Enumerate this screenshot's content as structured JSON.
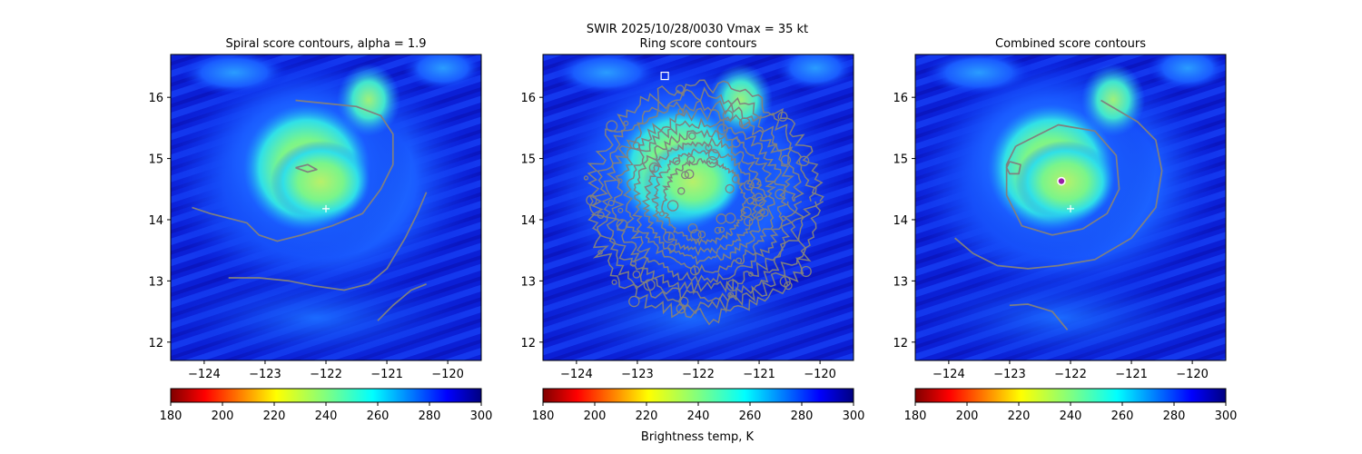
{
  "figure": {
    "suptitle_line1": "SWIR  2025/10/28/0030    Vmax = 35 kt",
    "colorbar_label": "Brightness temp, K"
  },
  "chart_data": [
    {
      "type": "heatmap",
      "title": "Spiral score contours, alpha =  1.9",
      "xlim": [
        -124.55,
        -119.45
      ],
      "ylim": [
        11.7,
        16.7
      ],
      "xticks": [
        -124,
        -123,
        -122,
        -121,
        -120
      ],
      "yticks": [
        12,
        13,
        14,
        15,
        16
      ],
      "contours": [
        {
          "name": "upper-ring",
          "points": [
            [
              -122.5,
              15.95
            ],
            [
              -121.5,
              15.85
            ],
            [
              -121.1,
              15.7
            ],
            [
              -120.9,
              15.4
            ],
            [
              -120.9,
              14.9
            ],
            [
              -121.1,
              14.5
            ],
            [
              -121.4,
              14.1
            ],
            [
              -121.9,
              13.9
            ],
            [
              -122.4,
              13.75
            ],
            [
              -122.8,
              13.65
            ],
            [
              -123.1,
              13.75
            ],
            [
              -123.3,
              13.95
            ],
            [
              -123.9,
              14.1
            ],
            [
              -124.2,
              14.2
            ]
          ]
        },
        {
          "name": "lower-spiral",
          "points": [
            [
              -123.6,
              13.05
            ],
            [
              -123.1,
              13.05
            ],
            [
              -122.6,
              13.0
            ],
            [
              -122.2,
              12.92
            ],
            [
              -121.7,
              12.85
            ],
            [
              -121.3,
              12.95
            ],
            [
              -121.0,
              13.2
            ],
            [
              -120.7,
              13.7
            ],
            [
              -120.5,
              14.1
            ],
            [
              -120.35,
              14.45
            ]
          ]
        },
        {
          "name": "tail",
          "points": [
            [
              -121.15,
              12.35
            ],
            [
              -120.9,
              12.6
            ],
            [
              -120.6,
              12.85
            ],
            [
              -120.35,
              12.95
            ]
          ]
        },
        {
          "name": "small-loop",
          "points": [
            [
              -122.5,
              14.85
            ],
            [
              -122.3,
              14.9
            ],
            [
              -122.15,
              14.82
            ],
            [
              -122.3,
              14.78
            ],
            [
              -122.5,
              14.85
            ]
          ]
        }
      ],
      "center_marker": {
        "lon": -122.0,
        "lat": 14.18,
        "symbol": "plus"
      }
    },
    {
      "type": "heatmap",
      "title": "Ring score contours",
      "xlim": [
        -124.55,
        -119.45
      ],
      "ylim": [
        11.7,
        16.7
      ],
      "xticks": [
        -124,
        -123,
        -122,
        -121,
        -120
      ],
      "yticks": [
        12,
        13,
        14,
        15,
        16
      ],
      "ring": {
        "lon": -121.9,
        "lat": 14.3,
        "radius_deg": 1.9
      },
      "center_marker": {
        "lon": -122.55,
        "lat": 16.35,
        "symbol": "square"
      }
    },
    {
      "type": "heatmap",
      "title": "Combined score contours",
      "xlim": [
        -124.55,
        -119.45
      ],
      "ylim": [
        11.7,
        16.7
      ],
      "xticks": [
        -124,
        -123,
        -122,
        -121,
        -120
      ],
      "yticks": [
        12,
        13,
        14,
        15,
        16
      ],
      "contours": [
        {
          "name": "inner-ring",
          "points": [
            [
              -122.9,
              15.2
            ],
            [
              -122.2,
              15.55
            ],
            [
              -121.6,
              15.45
            ],
            [
              -121.25,
              15.05
            ],
            [
              -121.2,
              14.5
            ],
            [
              -121.4,
              14.1
            ],
            [
              -121.8,
              13.85
            ],
            [
              -122.3,
              13.75
            ],
            [
              -122.8,
              13.9
            ],
            [
              -123.05,
              14.4
            ],
            [
              -123.05,
              14.9
            ],
            [
              -122.9,
              15.2
            ]
          ]
        },
        {
          "name": "outer-spiral",
          "points": [
            [
              -121.5,
              15.95
            ],
            [
              -120.9,
              15.6
            ],
            [
              -120.6,
              15.3
            ],
            [
              -120.5,
              14.8
            ],
            [
              -120.6,
              14.2
            ],
            [
              -121.0,
              13.7
            ],
            [
              -121.6,
              13.35
            ],
            [
              -122.2,
              13.25
            ],
            [
              -122.7,
              13.2
            ],
            [
              -123.2,
              13.25
            ],
            [
              -123.6,
              13.45
            ],
            [
              -123.9,
              13.7
            ]
          ]
        },
        {
          "name": "small-blob",
          "points": [
            [
              -123.0,
              14.95
            ],
            [
              -122.82,
              14.9
            ],
            [
              -122.85,
              14.75
            ],
            [
              -123.0,
              14.75
            ],
            [
              -123.05,
              14.85
            ],
            [
              -123.0,
              14.95
            ]
          ]
        },
        {
          "name": "tail",
          "points": [
            [
              -123.0,
              12.6
            ],
            [
              -122.7,
              12.62
            ],
            [
              -122.3,
              12.5
            ],
            [
              -122.05,
              12.2
            ]
          ]
        }
      ],
      "center_marker": {
        "lon": -122.0,
        "lat": 14.18,
        "symbol": "plus"
      },
      "best_marker": {
        "lon": -122.15,
        "lat": 14.63,
        "symbol": "circle"
      }
    }
  ],
  "colorbar": {
    "min": 180,
    "max": 300,
    "ticks": [
      180,
      200,
      220,
      240,
      260,
      280,
      300
    ],
    "colormap": "jet_r"
  },
  "colors": {
    "contour": "#808080",
    "marker": "#ffffff",
    "best_marker": "#9a1fa6"
  }
}
